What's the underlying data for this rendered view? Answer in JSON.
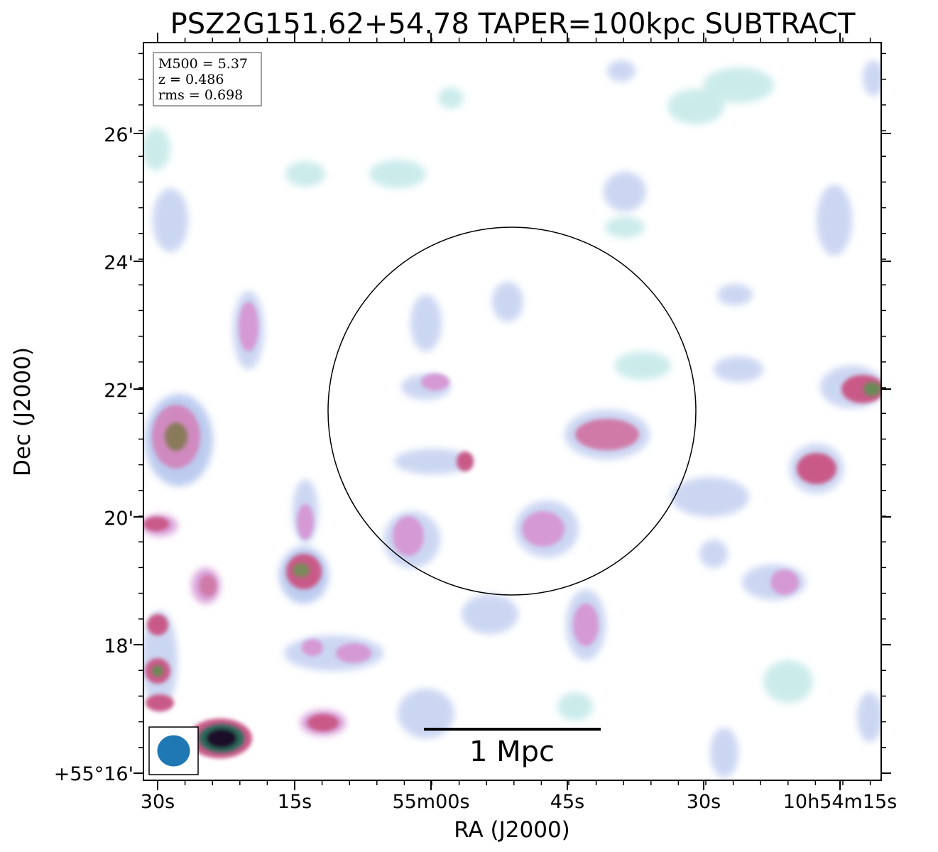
{
  "chart_data": {
    "type": "heatmap",
    "title": "PSZ2G151.62+54.78 TAPER=100kpc SUBTRACT",
    "xlabel": "RA (J2000)",
    "ylabel": "Dec (J2000)",
    "x_ticks": [
      "30s",
      "15s",
      "55m00s",
      "45s",
      "30s",
      "10h54m15s"
    ],
    "y_ticks": [
      "+55°16'",
      "18'",
      "20'",
      "22'",
      "24'",
      "26'"
    ],
    "info_box": {
      "mass": "M500 = 5.37",
      "redshift": "z = 0.486",
      "rms": "rms = 0.698"
    },
    "scale_bar": {
      "label": "1 Mpc"
    },
    "colors": {
      "low": "#c9eaea",
      "mid_low": "#b9c9ef",
      "mid": "#d59ad6",
      "high": "#c95a88",
      "very_high": "#5e8a52",
      "peak": "#1a0a2a",
      "beam": "#1f77b4"
    }
  }
}
